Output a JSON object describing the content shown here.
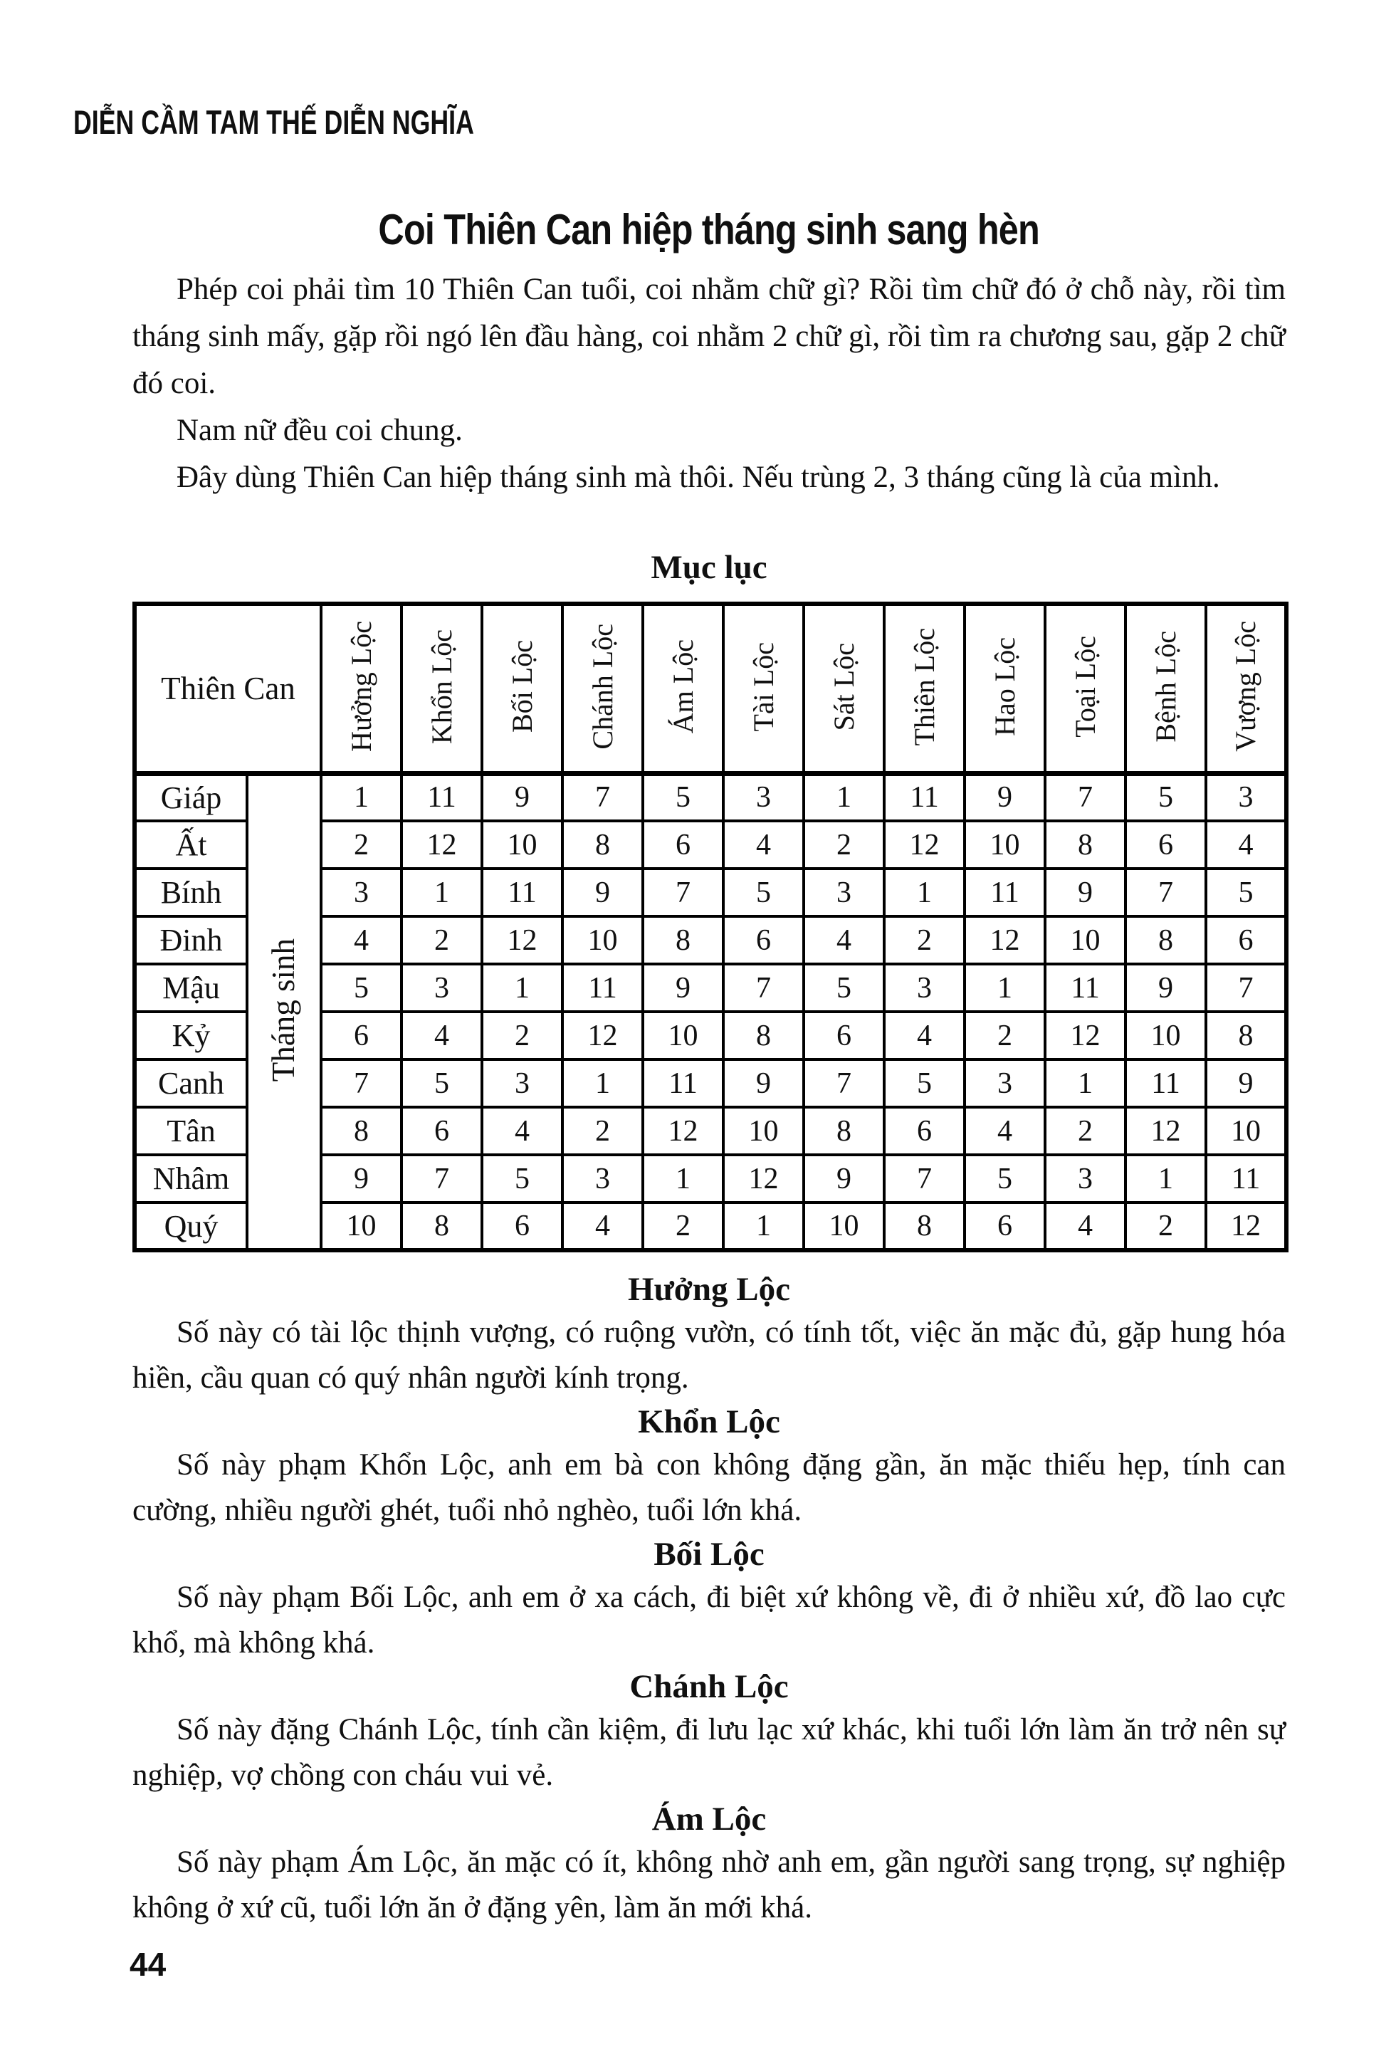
{
  "page": {
    "running_header": "DIỄN CẦM TAM THẾ DIỄN NGHĨA",
    "page_number": "44"
  },
  "colors": {
    "ink": "#101010",
    "paper": "#ffffff"
  },
  "article": {
    "title": "Coi Thiên Can hiệp tháng sinh sang hèn",
    "intro_paragraphs": [
      "Phép coi phải tìm 10 Thiên Can tuổi, coi nhằm chữ gì? Rồi tìm chữ đó ở chỗ này, rồi tìm tháng sinh mấy, gặp rồi ngó lên đầu hàng, coi nhằm 2 chữ gì, rồi tìm ra chương sau, gặp 2 chữ đó coi.",
      "Nam nữ đều coi chung.",
      "Đây dùng Thiên Can hiệp tháng sinh mà thôi. Nếu trùng 2, 3 tháng cũng là của mình."
    ]
  },
  "table": {
    "caption": "Mục lục",
    "corner_header": "Thiên Can",
    "row_group_label": "Tháng sinh",
    "column_headers": [
      "Hưởng Lộc",
      "Khổn Lộc",
      "Bối Lộc",
      "Chánh Lộc",
      "Ám Lộc",
      "Tài Lộc",
      "Sát Lộc",
      "Thiên Lộc",
      "Hao Lộc",
      "Toại Lộc",
      "Bệnh Lộc",
      "Vượng Lộc"
    ],
    "rows": [
      {
        "can": "Giáp",
        "values": [
          1,
          11,
          9,
          7,
          5,
          3,
          1,
          11,
          9,
          7,
          5,
          3
        ]
      },
      {
        "can": "Ất",
        "values": [
          2,
          12,
          10,
          8,
          6,
          4,
          2,
          12,
          10,
          8,
          6,
          4
        ]
      },
      {
        "can": "Bính",
        "values": [
          3,
          1,
          11,
          9,
          7,
          5,
          3,
          1,
          11,
          9,
          7,
          5
        ]
      },
      {
        "can": "Đinh",
        "values": [
          4,
          2,
          12,
          10,
          8,
          6,
          4,
          2,
          12,
          10,
          8,
          6
        ]
      },
      {
        "can": "Mậu",
        "values": [
          5,
          3,
          1,
          11,
          9,
          7,
          5,
          3,
          1,
          11,
          9,
          7
        ]
      },
      {
        "can": "Kỷ",
        "values": [
          6,
          4,
          2,
          12,
          10,
          8,
          6,
          4,
          2,
          12,
          10,
          8
        ]
      },
      {
        "can": "Canh",
        "values": [
          7,
          5,
          3,
          1,
          11,
          9,
          7,
          5,
          3,
          1,
          11,
          9
        ]
      },
      {
        "can": "Tân",
        "values": [
          8,
          6,
          4,
          2,
          12,
          10,
          8,
          6,
          4,
          2,
          12,
          10
        ]
      },
      {
        "can": "Nhâm",
        "values": [
          9,
          7,
          5,
          3,
          1,
          12,
          9,
          7,
          5,
          3,
          1,
          11
        ]
      },
      {
        "can": "Quý",
        "values": [
          10,
          8,
          6,
          4,
          2,
          1,
          10,
          8,
          6,
          4,
          2,
          12
        ]
      }
    ]
  },
  "sections": [
    {
      "heading": "Hưởng Lộc",
      "body": "Số này có tài lộc thịnh vượng, có ruộng vườn, có tính tốt, việc ăn mặc đủ, gặp hung hóa hiền, cầu quan có quý nhân người kính trọng."
    },
    {
      "heading": "Khổn Lộc",
      "body": "Số này phạm Khổn Lộc, anh em bà con không đặng gần, ăn mặc thiếu hẹp, tính can cường, nhiều người ghét, tuổi nhỏ nghèo, tuổi lớn khá."
    },
    {
      "heading": "Bối Lộc",
      "body": "Số này phạm Bối Lộc, anh em ở xa cách, đi biệt xứ không về, đi ở nhiều xứ, đồ lao cực khổ, mà không khá."
    },
    {
      "heading": "Chánh Lộc",
      "body": "Số này đặng Chánh Lộc, tính cần kiệm, đi lưu lạc xứ khác, khi tuổi lớn làm ăn trở nên sự nghiệp, vợ chồng con cháu vui vẻ."
    },
    {
      "heading": "Ám Lộc",
      "body": "Số này phạm Ám Lộc, ăn mặc có ít, không nhờ anh em, gần người sang trọng, sự nghiệp không ở xứ cũ, tuổi lớn ăn ở đặng yên, làm ăn mới khá."
    }
  ]
}
